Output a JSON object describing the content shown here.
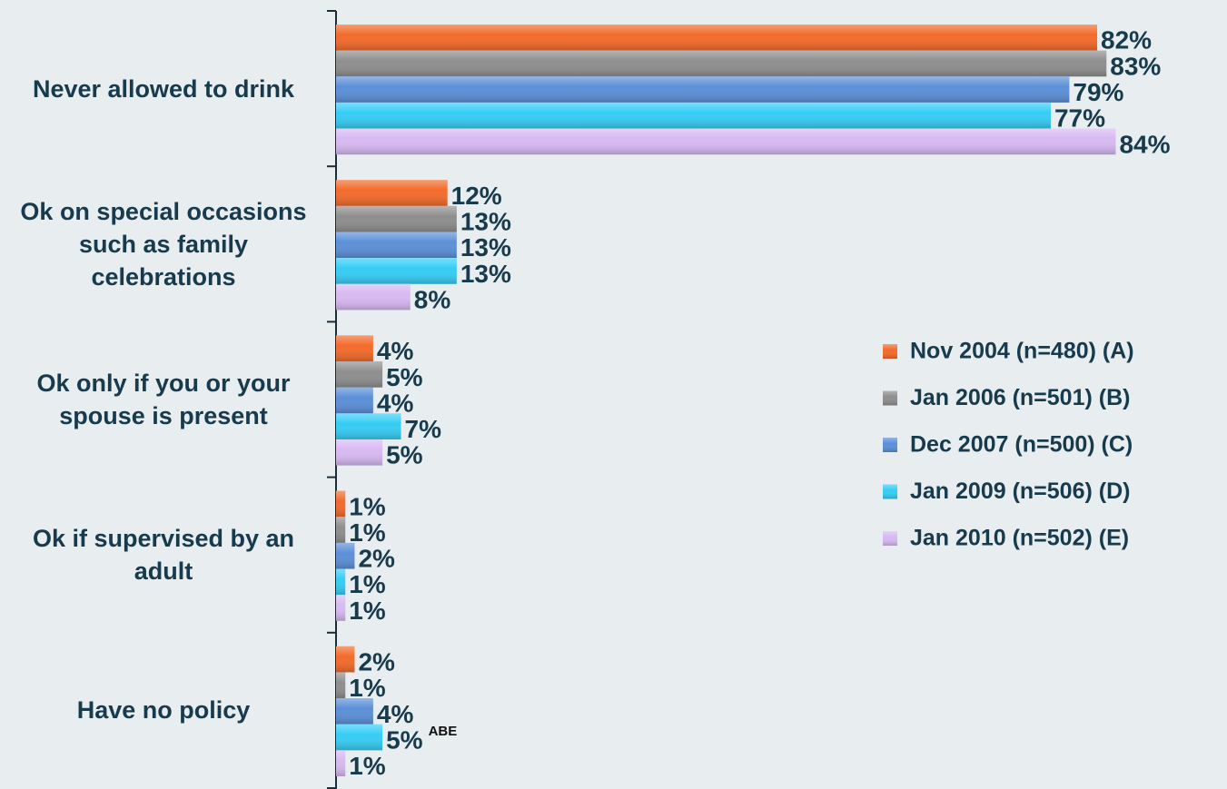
{
  "chart_data": {
    "type": "bar",
    "orientation": "horizontal",
    "categories": [
      "Never allowed to drink",
      "Ok on special occasions such as family celebrations",
      "Ok only if you or your spouse is present",
      "Ok if supervised by an adult",
      "Have no policy"
    ],
    "xlim": [
      0,
      100
    ],
    "series": [
      {
        "name": "Nov 2004 (n=480) (A)",
        "color": "#f36a2a",
        "values": [
          82,
          12,
          4,
          1,
          2
        ],
        "value_labels": [
          "82%",
          "12%",
          "4%",
          "1%",
          "2%"
        ]
      },
      {
        "name": "Jan 2006 (n=501) (B)",
        "color": "#8e8e8e",
        "values": [
          83,
          13,
          5,
          1,
          1
        ],
        "value_labels": [
          "83%",
          "13%",
          "5%",
          "1%",
          "1%"
        ]
      },
      {
        "name": "Dec 2007 (n=500) (C)",
        "color": "#5b8fd8",
        "values": [
          79,
          13,
          4,
          2,
          4
        ],
        "value_labels": [
          "79%",
          "13%",
          "4%",
          "2%",
          "4%"
        ]
      },
      {
        "name": "Jan 2009 (n=506) (D)",
        "color": "#35cdf5",
        "values": [
          77,
          13,
          7,
          1,
          5
        ],
        "value_labels": [
          "77%",
          "13%",
          "7%",
          "1%",
          "5%"
        ],
        "value_notes": [
          null,
          null,
          null,
          null,
          "ABE"
        ]
      },
      {
        "name": "Jan 2010 (n=502) (E)",
        "color": "#d8b9f2",
        "values": [
          84,
          8,
          5,
          1,
          1
        ],
        "value_labels": [
          "84%",
          "8%",
          "5%",
          "1%",
          "1%"
        ]
      }
    ]
  }
}
